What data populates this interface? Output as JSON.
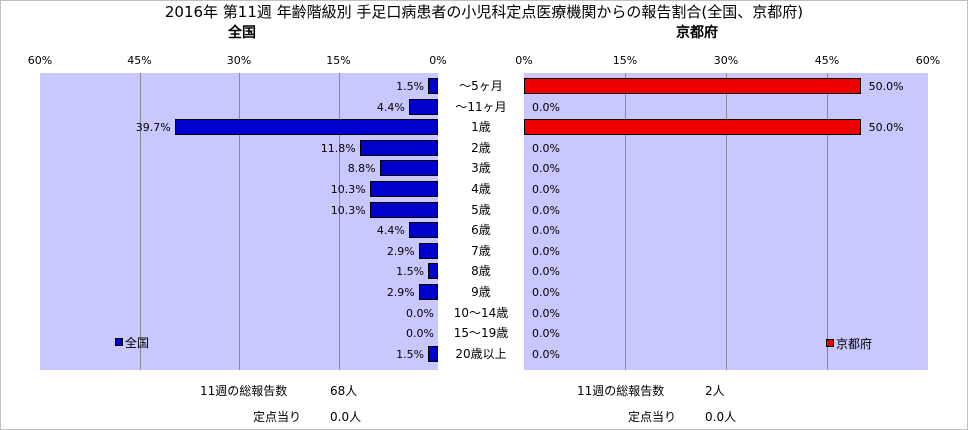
{
  "title": "2016年 第11週 年齢階級別 手足口病患者の小児科定点医療機関からの報告割合(全国、京都府)",
  "colors": {
    "national": "#0000cc",
    "kyoto": "#ee0000",
    "plot_bg": "#c8c8ff",
    "grid": "#8c8c8c"
  },
  "chart_data": [
    {
      "type": "bar",
      "orientation": "horizontal",
      "direction": "right-to-left",
      "subtitle": "全国",
      "legend": "全国",
      "legend_position": "bottom-left",
      "grid": true,
      "xlim": [
        0,
        60
      ],
      "ticks": [
        "60%",
        "45%",
        "30%",
        "15%",
        "0%"
      ],
      "categories": [
        "～5ヶ月",
        "～11ヶ月",
        "1歳",
        "2歳",
        "3歳",
        "4歳",
        "5歳",
        "6歳",
        "7歳",
        "8歳",
        "9歳",
        "10～14歳",
        "15～19歳",
        "20歳以上"
      ],
      "values": [
        1.5,
        4.4,
        39.7,
        11.8,
        8.8,
        10.3,
        10.3,
        4.4,
        2.9,
        1.5,
        2.9,
        0.0,
        0.0,
        1.5
      ],
      "labels": [
        "1.5%",
        "4.4%",
        "39.7%",
        "11.8%",
        "8.8%",
        "10.3%",
        "10.3%",
        "4.4%",
        "2.9%",
        "1.5%",
        "2.9%",
        "0.0%",
        "0.0%",
        "1.5%"
      ]
    },
    {
      "type": "bar",
      "orientation": "horizontal",
      "direction": "left-to-right",
      "subtitle": "京都府",
      "legend": "京都府",
      "legend_position": "bottom-right",
      "grid": true,
      "xlim": [
        0,
        60
      ],
      "ticks": [
        "0%",
        "15%",
        "30%",
        "45%",
        "60%"
      ],
      "categories": [
        "～5ヶ月",
        "～11ヶ月",
        "1歳",
        "2歳",
        "3歳",
        "4歳",
        "5歳",
        "6歳",
        "7歳",
        "8歳",
        "9歳",
        "10～14歳",
        "15～19歳",
        "20歳以上"
      ],
      "values": [
        50.0,
        0.0,
        50.0,
        0.0,
        0.0,
        0.0,
        0.0,
        0.0,
        0.0,
        0.0,
        0.0,
        0.0,
        0.0,
        0.0
      ],
      "labels": [
        "50.0%",
        "0.0%",
        "50.0%",
        "0.0%",
        "0.0%",
        "0.0%",
        "0.0%",
        "0.0%",
        "0.0%",
        "0.0%",
        "0.0%",
        "0.0%",
        "0.0%",
        "0.0%"
      ]
    }
  ],
  "footer": {
    "national": {
      "weekly_label": "11週の総報告数",
      "weekly_value": "68人",
      "perpoint_label": "定点当り",
      "perpoint_value": "0.0人"
    },
    "kyoto": {
      "weekly_label": "11週の総報告数",
      "weekly_value": "2人",
      "perpoint_label": "定点当り",
      "perpoint_value": "0.0人"
    }
  }
}
